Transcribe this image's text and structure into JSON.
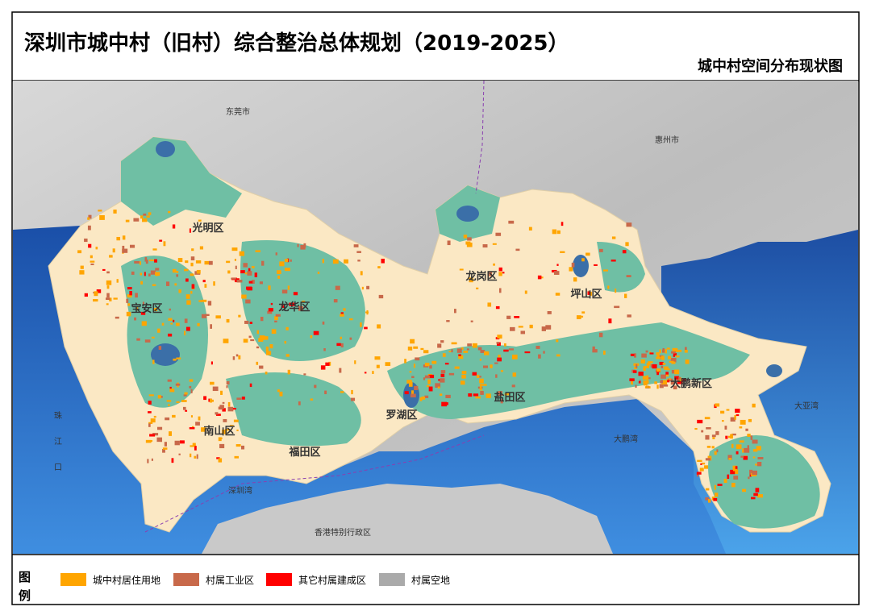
{
  "header": {
    "title": "深圳市城中村（旧村）综合整治总体规划（2019-2025）",
    "subtitle": "城中村空间分布现状图"
  },
  "map": {
    "labels": [
      "东莞市",
      "惠州市",
      "光明区",
      "宝安区",
      "龙华区",
      "龙岗区",
      "坪山区",
      "大鹏新区",
      "盐田区",
      "罗湖区",
      "南山区",
      "福田区",
      "深圳湾",
      "香港特别行政区",
      "大鹏湾",
      "大亚湾",
      "珠江口"
    ]
  },
  "legend": {
    "heading": "图例",
    "items": [
      {
        "label": "城中村居住用地",
        "color": "#ffa500"
      },
      {
        "label": "村属工业区",
        "color": "#c8694a"
      },
      {
        "label": "其它村属建成区",
        "color": "#ff0000"
      },
      {
        "label": "村属空地",
        "color": "#aaaaaa"
      }
    ]
  }
}
